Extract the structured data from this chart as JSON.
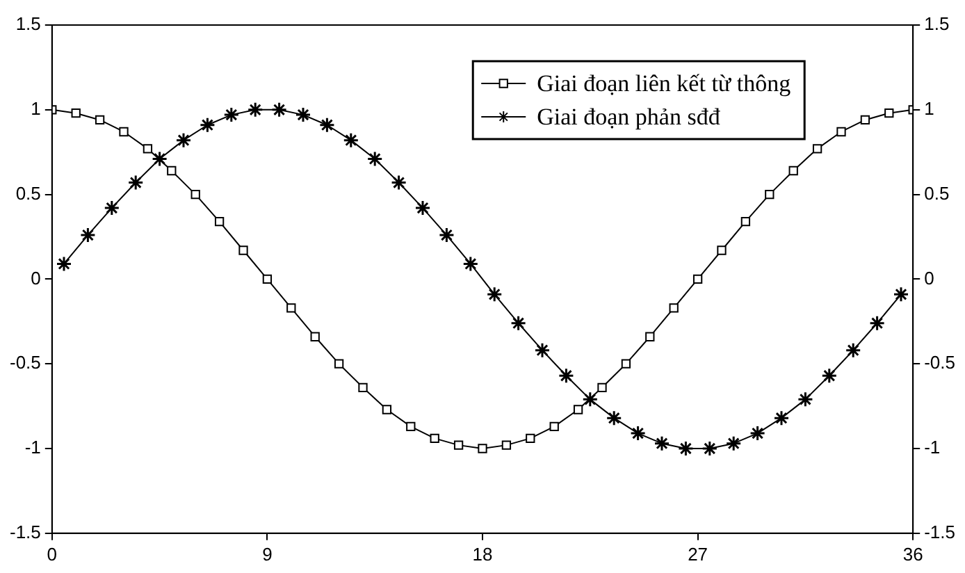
{
  "chart_data": {
    "type": "line",
    "legend": "top right",
    "grid": false,
    "xlim": [
      0,
      36
    ],
    "xticks": [
      0,
      9,
      18,
      27,
      36
    ],
    "ylim": [
      -1.5,
      1.5
    ],
    "yticks": [
      -1.5,
      -1,
      -0.5,
      0,
      0.5,
      1,
      1.5
    ],
    "y2lim": [
      -1.5,
      1.5
    ],
    "y2ticks": [
      -1.5,
      -1,
      -0.5,
      0,
      0.5,
      1,
      1.5
    ],
    "series": [
      {
        "name": "Giai đoạn liên kết từ thông",
        "color": "#000000",
        "marker": "square",
        "x": [
          0,
          1,
          2,
          3,
          4,
          5,
          6,
          7,
          8,
          9,
          10,
          11,
          12,
          13,
          14,
          15,
          16,
          17,
          18,
          19,
          20,
          21,
          22,
          23,
          24,
          25,
          26,
          27,
          28,
          29,
          30,
          31,
          32,
          33,
          34,
          35,
          36
        ],
        "values": [
          1,
          0.98,
          0.94,
          0.87,
          0.77,
          0.64,
          0.5,
          0.34,
          0.17,
          0,
          -0.17,
          -0.34,
          -0.5,
          -0.64,
          -0.77,
          -0.87,
          -0.94,
          -0.98,
          -1,
          -0.98,
          -0.94,
          -0.87,
          -0.77,
          -0.64,
          -0.5,
          -0.34,
          -0.17,
          0,
          0.17,
          0.34,
          0.5,
          0.64,
          0.77,
          0.87,
          0.94,
          0.98,
          1
        ]
      },
      {
        "name": "Giai đoạn phản sđđ",
        "color": "#000000",
        "marker": "cross",
        "x": [
          0.5,
          1.5,
          2.5,
          3.5,
          4.5,
          5.5,
          6.5,
          7.5,
          8.5,
          9.5,
          10.5,
          11.5,
          12.5,
          13.5,
          14.5,
          15.5,
          16.5,
          17.5,
          18.5,
          19.5,
          20.5,
          21.5,
          22.5,
          23.5,
          24.5,
          25.5,
          26.5,
          27.5,
          28.5,
          29.5,
          30.5,
          31.5,
          32.5,
          33.5,
          34.5,
          35.5
        ],
        "values": [
          0.09,
          0.26,
          0.42,
          0.57,
          0.71,
          0.82,
          0.91,
          0.97,
          1,
          1,
          0.97,
          0.91,
          0.82,
          0.71,
          0.57,
          0.42,
          0.26,
          0.09,
          -0.09,
          -0.26,
          -0.42,
          -0.57,
          -0.71,
          -0.82,
          -0.91,
          -0.97,
          -1,
          -1,
          -0.97,
          -0.91,
          -0.82,
          -0.71,
          -0.57,
          -0.42,
          -0.26,
          -0.09
        ]
      }
    ]
  }
}
